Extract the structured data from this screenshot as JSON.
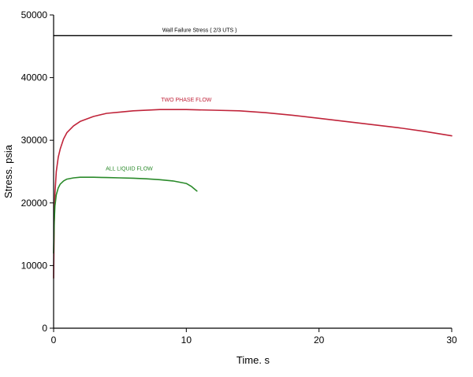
{
  "chart_data": {
    "type": "line",
    "title": "",
    "xlabel": "Time. s",
    "ylabel": "Stress. psia",
    "xlim": [
      0,
      30
    ],
    "ylim": [
      0,
      50000
    ],
    "xticks": [
      0,
      10,
      20,
      30
    ],
    "yticks": [
      0,
      10000,
      20000,
      30000,
      40000,
      50000
    ],
    "grid": false,
    "series": [
      {
        "name": "TWO PHASE FLOW",
        "color": "#c0243a",
        "x": [
          0,
          0.05,
          0.1,
          0.2,
          0.35,
          0.5,
          0.75,
          1,
          1.5,
          2,
          3,
          4,
          5,
          6,
          8,
          10,
          12,
          14,
          16,
          18,
          20,
          22,
          24,
          26,
          28,
          30
        ],
        "y": [
          8000,
          17000,
          21500,
          25000,
          27300,
          28600,
          30200,
          31200,
          32300,
          33000,
          33800,
          34300,
          34500,
          34700,
          34900,
          34900,
          34800,
          34700,
          34400,
          34000,
          33500,
          33000,
          32500,
          32000,
          31400,
          30700
        ]
      },
      {
        "name": "ALL LIQUID FLOW",
        "color": "#2a8a2a",
        "x": [
          0,
          0.05,
          0.1,
          0.2,
          0.35,
          0.5,
          0.75,
          1,
          1.5,
          2,
          3,
          4,
          5,
          6,
          7,
          8,
          9,
          10,
          10.4,
          10.8
        ],
        "y": [
          12000,
          17000,
          19500,
          21300,
          22400,
          23000,
          23500,
          23800,
          24000,
          24100,
          24100,
          24050,
          24000,
          23950,
          23850,
          23700,
          23500,
          23100,
          22600,
          21900
        ]
      },
      {
        "name": "Wall Failure Stress ( 2/3 UTS )",
        "color": "#000000",
        "x": [
          0,
          30
        ],
        "y": [
          46700,
          46700
        ]
      }
    ],
    "annotations": [
      {
        "text": "Wall Failure Stress ( 2/3 UTS )",
        "x": 11,
        "y": 47300,
        "series": 2
      },
      {
        "text": "TWO PHASE FLOW",
        "x": 10,
        "y": 36200,
        "series": 0
      },
      {
        "text": "ALL LIQUID FLOW",
        "x": 5.7,
        "y": 25200,
        "series": 1
      }
    ]
  }
}
